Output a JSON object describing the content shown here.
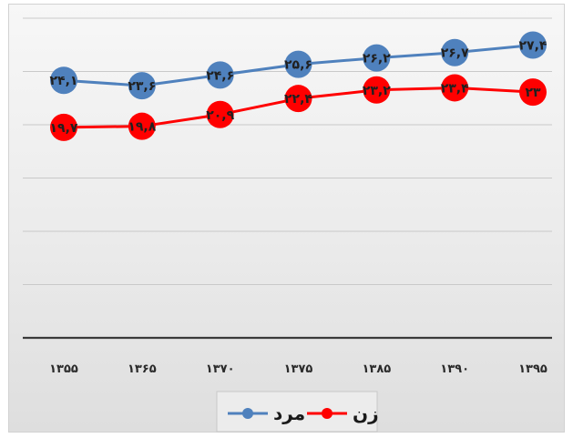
{
  "chart_data": {
    "type": "line",
    "title": "",
    "xlabel": "",
    "ylabel": "",
    "categories": [
      "۱۳۵۵",
      "۱۳۶۵",
      "۱۳۷۰",
      "۱۳۷۵",
      "۱۳۸۵",
      "۱۳۹۰",
      "۱۳۹۵"
    ],
    "ylim": [
      0,
      30
    ],
    "grid": true,
    "legend_position": "bottom",
    "series": [
      {
        "name": "مرد",
        "color": "#4f81bd",
        "values": [
          24.1,
          23.6,
          24.6,
          25.6,
          26.2,
          26.7,
          27.4
        ],
        "labels": [
          "۲۴,۱",
          "۲۳,۶",
          "۲۴,۶",
          "۲۵,۶",
          "۲۶,۲",
          "۲۶,۷",
          "۲۷,۴"
        ]
      },
      {
        "name": "زن",
        "color": "#ff0000",
        "values": [
          19.7,
          19.8,
          20.9,
          22.4,
          23.2,
          23.4,
          23.0
        ],
        "labels": [
          "۱۹,۷",
          "۱۹,۸",
          "۲۰,۹",
          "۲۲,۴",
          "۲۳,۲",
          "۲۳,۴",
          "۲۳"
        ]
      }
    ]
  }
}
